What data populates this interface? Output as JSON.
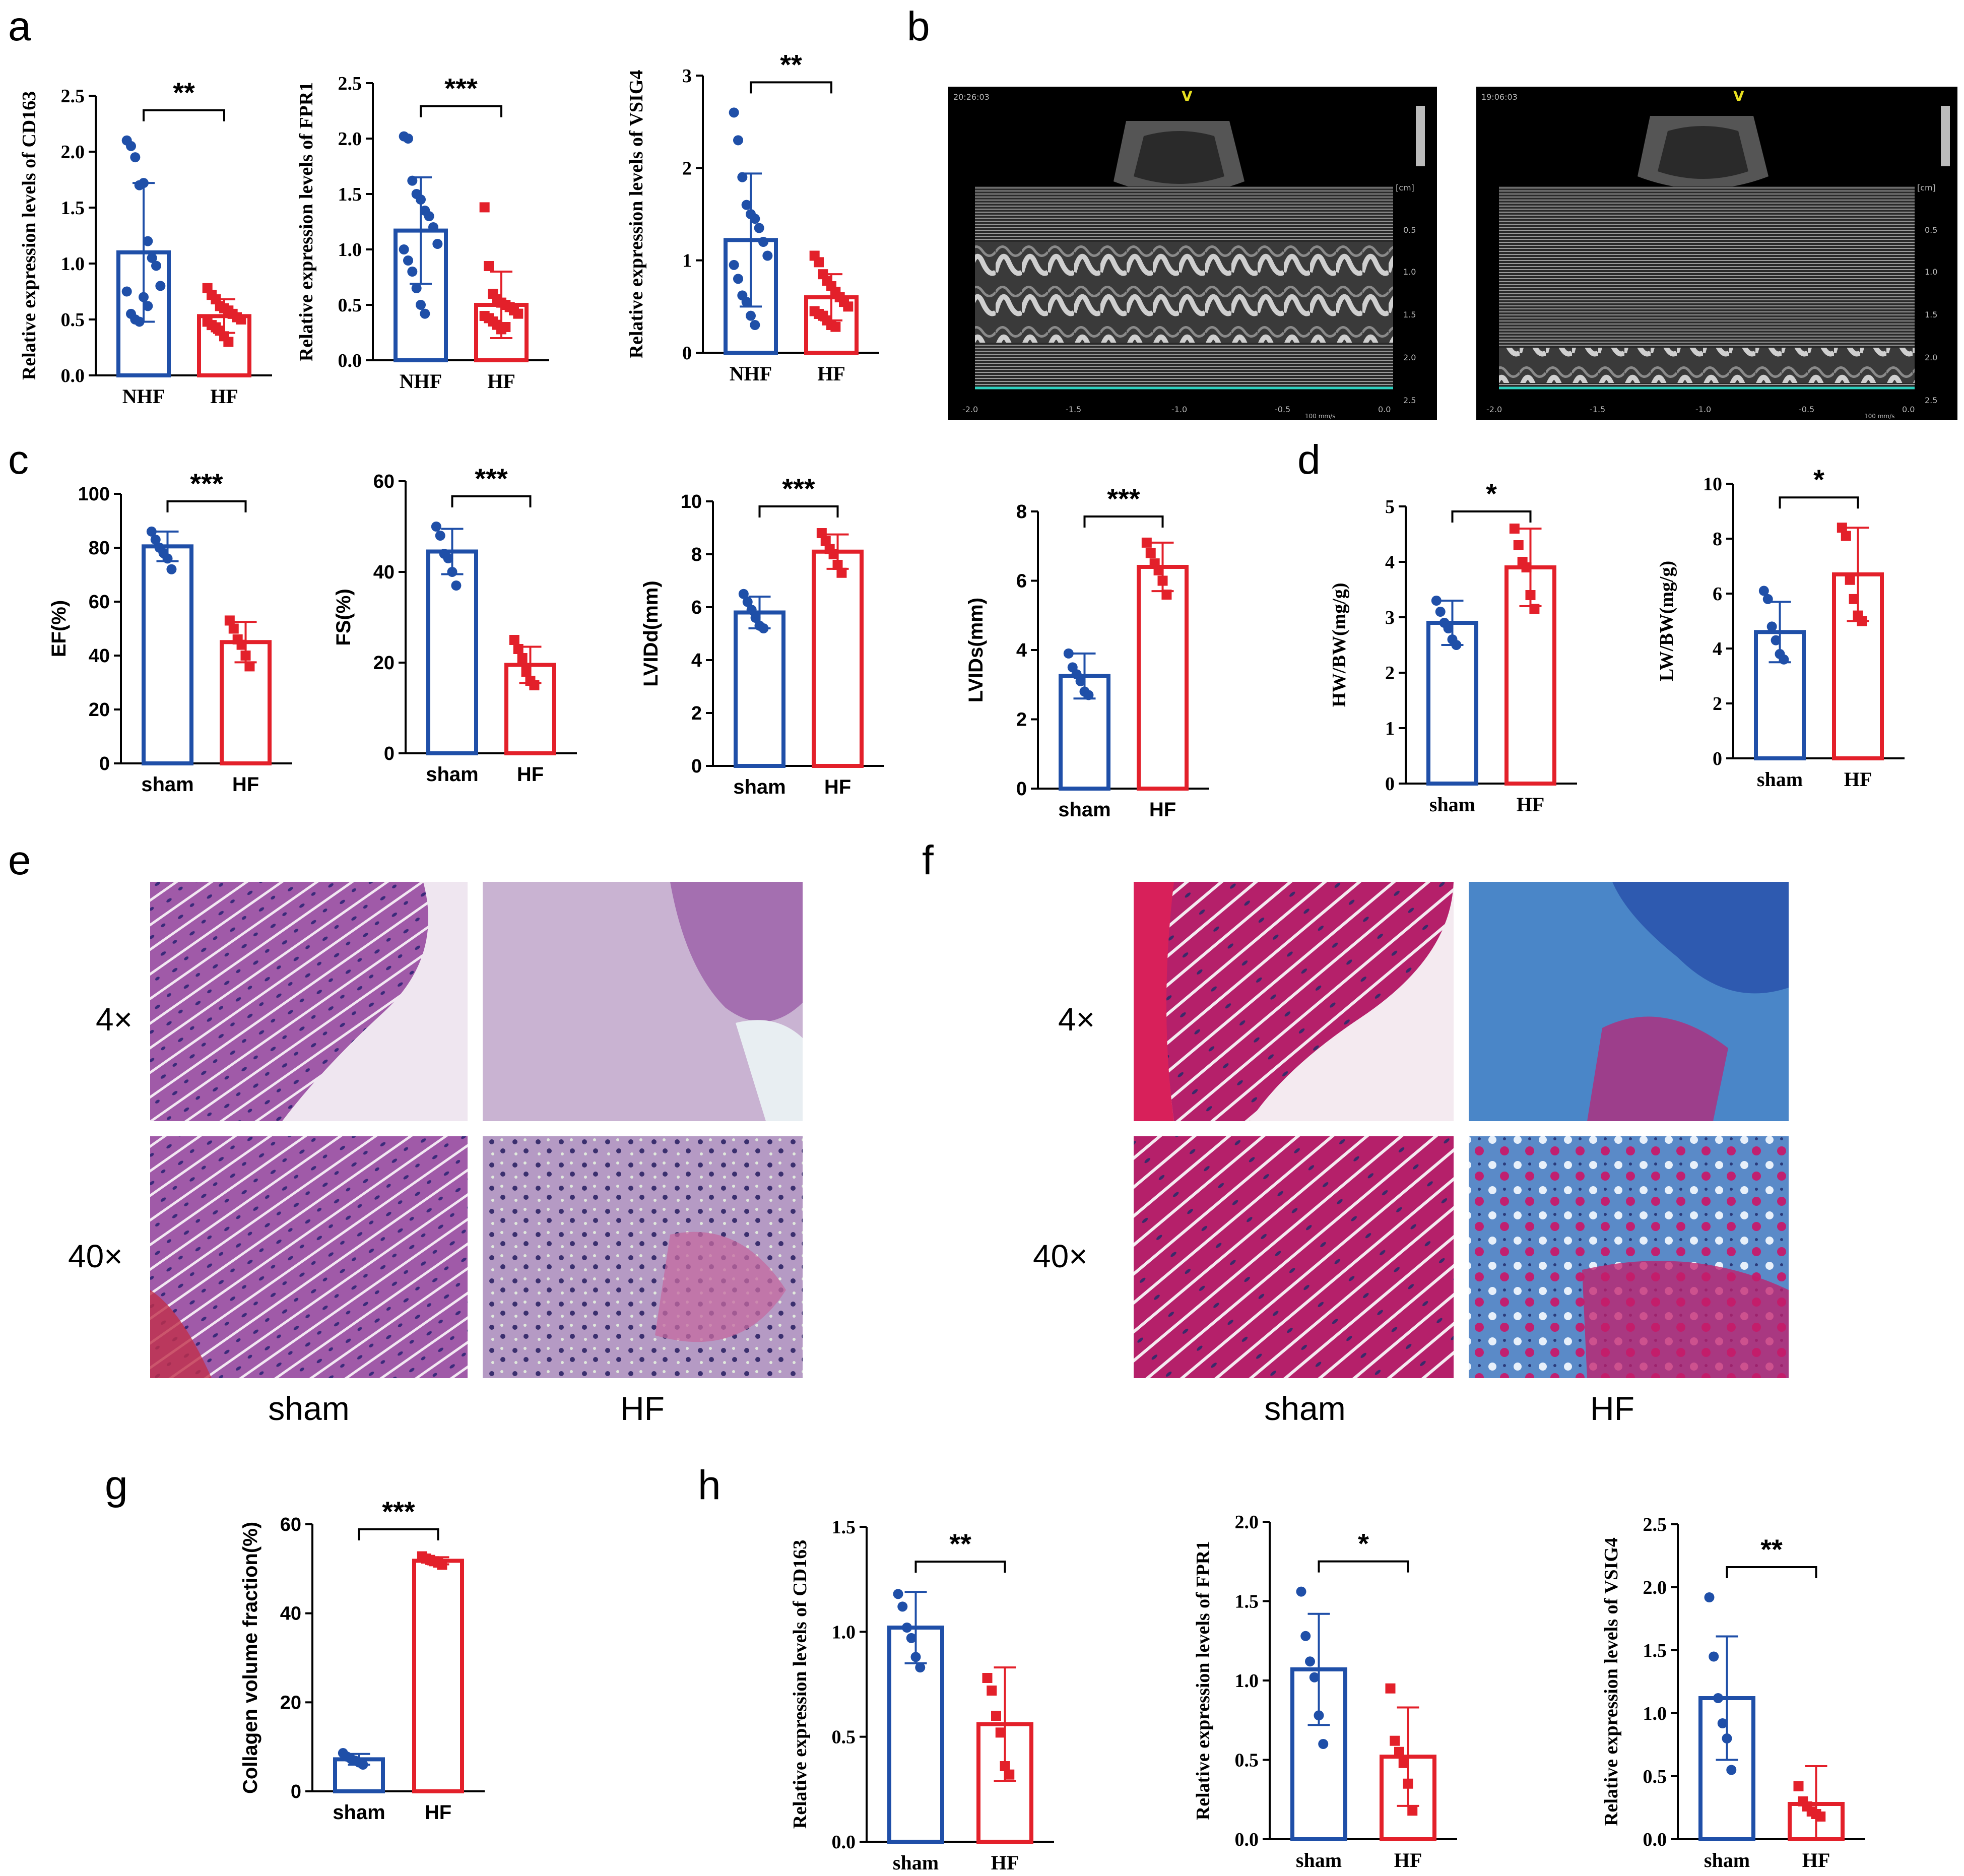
{
  "panel_labels": {
    "a": "a",
    "b": "b",
    "c": "c",
    "d": "d",
    "e": "e",
    "f": "f",
    "g": "g",
    "h": "h"
  },
  "colors": {
    "sham": "#1f4fa8",
    "hf": "#e3202a",
    "axis": "#000000"
  },
  "chart_data": [
    {
      "type": "bar",
      "panel": "a",
      "ylabel": "Relative expression levels of CD163",
      "categories": [
        "NHF",
        "HF"
      ],
      "values": [
        1.1,
        0.53
      ],
      "errors": [
        0.62,
        0.15
      ],
      "ylim": [
        0,
        2.5
      ],
      "yticks": [
        0.0,
        0.5,
        1.0,
        1.5,
        2.0,
        2.5
      ],
      "tick_labels": [
        "0.0",
        "0.5",
        "1.0",
        "1.5",
        "2.0",
        "2.5"
      ],
      "significance": "**",
      "points": [
        [
          2.1,
          2.05,
          1.95,
          1.7,
          1.72,
          1.2,
          1.05,
          0.98,
          0.8,
          0.75,
          0.55,
          0.5,
          0.48,
          0.7,
          0.62
        ],
        [
          0.78,
          0.72,
          0.68,
          0.62,
          0.6,
          0.58,
          0.55,
          0.52,
          0.5,
          0.48,
          0.45,
          0.43,
          0.4,
          0.35,
          0.3
        ]
      ],
      "serif": true
    },
    {
      "type": "bar",
      "panel": "a",
      "ylabel": "Relative expression levels of FPR1",
      "categories": [
        "NHF",
        "HF"
      ],
      "values": [
        1.17,
        0.5
      ],
      "errors": [
        0.48,
        0.3
      ],
      "ylim": [
        0,
        2.5
      ],
      "yticks": [
        0.0,
        0.5,
        1.0,
        1.5,
        2.0,
        2.5
      ],
      "tick_labels": [
        "0.0",
        "0.5",
        "1.0",
        "1.5",
        "2.0",
        "2.5"
      ],
      "significance": "***",
      "points": [
        [
          2.02,
          2.0,
          1.62,
          1.5,
          1.45,
          1.35,
          1.3,
          1.2,
          1.05,
          1.0,
          0.9,
          0.8,
          0.65,
          0.5,
          0.42
        ],
        [
          1.38,
          0.85,
          0.6,
          0.55,
          0.52,
          0.5,
          0.48,
          0.45,
          0.42,
          0.4,
          0.38,
          0.35,
          0.32,
          0.28,
          0.3
        ]
      ],
      "serif": true
    },
    {
      "type": "bar",
      "panel": "a",
      "ylabel": "Relative expression levels of VSIG4",
      "categories": [
        "NHF",
        "HF"
      ],
      "values": [
        1.22,
        0.6
      ],
      "errors": [
        0.72,
        0.25
      ],
      "ylim": [
        0,
        3
      ],
      "yticks": [
        0,
        1,
        2,
        3
      ],
      "tick_labels": [
        "0",
        "1",
        "2",
        "3"
      ],
      "significance": "**",
      "points": [
        [
          2.6,
          2.3,
          1.9,
          1.6,
          1.5,
          1.45,
          1.35,
          1.2,
          1.05,
          0.95,
          0.8,
          0.62,
          0.55,
          0.4,
          0.3
        ],
        [
          1.05,
          0.98,
          0.85,
          0.78,
          0.72,
          0.66,
          0.6,
          0.55,
          0.5,
          0.45,
          0.42,
          0.4,
          0.35,
          0.3,
          0.28
        ]
      ],
      "serif": true
    },
    {
      "type": "bar",
      "panel": "c",
      "ylabel": "EF(%)",
      "categories": [
        "sham",
        "HF"
      ],
      "values": [
        80.5,
        45
      ],
      "errors": [
        5.5,
        7.5
      ],
      "ylim": [
        0,
        100
      ],
      "yticks": [
        0,
        20,
        40,
        60,
        80,
        100
      ],
      "tick_labels": [
        "0",
        "20",
        "40",
        "60",
        "80",
        "100"
      ],
      "significance": "***",
      "points": [
        [
          86,
          83,
          80,
          78,
          76,
          72
        ],
        [
          53,
          50,
          46,
          44,
          40,
          36
        ]
      ],
      "serif": false
    },
    {
      "type": "bar",
      "panel": "c",
      "ylabel": "FS(%)",
      "categories": [
        "sham",
        "HF"
      ],
      "values": [
        44.5,
        19.5
      ],
      "errors": [
        5,
        4
      ],
      "ylim": [
        0,
        60
      ],
      "yticks": [
        0,
        20,
        40,
        60
      ],
      "tick_labels": [
        "0",
        "20",
        "40",
        "60"
      ],
      "significance": "***",
      "points": [
        [
          50,
          48,
          44,
          43,
          40,
          37
        ],
        [
          25,
          23,
          21,
          18,
          16,
          15
        ]
      ],
      "serif": false
    },
    {
      "type": "bar",
      "panel": "c",
      "ylabel": "LVIDd(mm)",
      "categories": [
        "sham",
        "HF"
      ],
      "values": [
        5.8,
        8.1
      ],
      "errors": [
        0.6,
        0.65
      ],
      "ylim": [
        0,
        10
      ],
      "yticks": [
        0,
        2,
        4,
        6,
        8,
        10
      ],
      "tick_labels": [
        "0",
        "2",
        "4",
        "6",
        "8",
        "10"
      ],
      "significance": "***",
      "points": [
        [
          6.5,
          6.2,
          5.9,
          5.6,
          5.3,
          5.2
        ],
        [
          8.8,
          8.5,
          8.2,
          8.0,
          7.6,
          7.3
        ]
      ],
      "serif": false
    },
    {
      "type": "bar",
      "panel": "c",
      "ylabel": "LVIDs(mm)",
      "categories": [
        "sham",
        "HF"
      ],
      "values": [
        3.25,
        6.4
      ],
      "errors": [
        0.65,
        0.7
      ],
      "ylim": [
        0,
        8
      ],
      "yticks": [
        0,
        2,
        4,
        6,
        8
      ],
      "tick_labels": [
        "0",
        "2",
        "4",
        "6",
        "8"
      ],
      "significance": "***",
      "points": [
        [
          3.9,
          3.5,
          3.3,
          3.1,
          2.8,
          2.7
        ],
        [
          7.1,
          6.8,
          6.5,
          6.3,
          6.0,
          5.6
        ]
      ],
      "serif": false
    },
    {
      "type": "bar",
      "panel": "d",
      "ylabel": "HW/BW(mg/g)",
      "categories": [
        "sham",
        "HF"
      ],
      "values": [
        2.9,
        3.9
      ],
      "errors": [
        0.4,
        0.7
      ],
      "ylim": [
        0,
        5
      ],
      "yticks": [
        0,
        1,
        2,
        3,
        4,
        5
      ],
      "tick_labels": [
        "0",
        "1",
        "2",
        "3",
        "4",
        "5"
      ],
      "significance": "*",
      "points": [
        [
          3.3,
          3.1,
          2.9,
          2.8,
          2.6,
          2.5
        ],
        [
          4.6,
          4.3,
          4.0,
          3.9,
          3.4,
          3.15
        ]
      ],
      "serif": true
    },
    {
      "type": "bar",
      "panel": "d",
      "ylabel": "LW/BW(mg/g)",
      "categories": [
        "sham",
        "HF"
      ],
      "values": [
        4.6,
        6.7
      ],
      "errors": [
        1.1,
        1.7
      ],
      "ylim": [
        0,
        10
      ],
      "yticks": [
        0,
        2,
        4,
        6,
        8,
        10
      ],
      "tick_labels": [
        "0",
        "2",
        "4",
        "6",
        "8",
        "10"
      ],
      "significance": "*",
      "points": [
        [
          6.1,
          5.8,
          4.8,
          4.3,
          3.8,
          3.6
        ],
        [
          8.4,
          8.1,
          6.5,
          5.8,
          5.2,
          5.0
        ]
      ],
      "serif": true
    },
    {
      "type": "bar",
      "panel": "g",
      "ylabel": "Collagen volume fraction(%)",
      "categories": [
        "sham",
        "HF"
      ],
      "values": [
        7.2,
        51.8
      ],
      "errors": [
        1.2,
        0.8
      ],
      "ylim": [
        0,
        60
      ],
      "yticks": [
        0,
        20,
        40,
        60
      ],
      "tick_labels": [
        "0",
        "20",
        "40",
        "60"
      ],
      "significance": "***",
      "points": [
        [
          8.6,
          7.8,
          7.3,
          6.9,
          6.5,
          6.0
        ],
        [
          52.8,
          52.3,
          52.0,
          51.7,
          51.4,
          50.9
        ]
      ],
      "serif": false
    },
    {
      "type": "bar",
      "panel": "h",
      "ylabel": "Relative expression levels of CD163",
      "categories": [
        "sham",
        "HF"
      ],
      "values": [
        1.02,
        0.56
      ],
      "errors": [
        0.17,
        0.27
      ],
      "ylim": [
        0,
        1.5
      ],
      "yticks": [
        0.0,
        0.5,
        1.0,
        1.5
      ],
      "tick_labels": [
        "0.0",
        "0.5",
        "1.0",
        "1.5"
      ],
      "significance": "**",
      "points": [
        [
          1.18,
          1.12,
          1.02,
          0.97,
          0.88,
          0.83
        ],
        [
          0.78,
          0.72,
          0.6,
          0.52,
          0.36,
          0.32
        ]
      ],
      "serif": true
    },
    {
      "type": "bar",
      "panel": "h",
      "ylabel": "Relative expression levels of FPR1",
      "categories": [
        "sham",
        "HF"
      ],
      "values": [
        1.07,
        0.52
      ],
      "errors": [
        0.35,
        0.31
      ],
      "ylim": [
        0,
        2.0
      ],
      "yticks": [
        0.0,
        0.5,
        1.0,
        1.5,
        2.0
      ],
      "tick_labels": [
        "0.0",
        "0.5",
        "1.0",
        "1.5",
        "2.0"
      ],
      "significance": "*",
      "points": [
        [
          1.56,
          1.28,
          1.12,
          1.02,
          0.78,
          0.6
        ],
        [
          0.95,
          0.62,
          0.55,
          0.48,
          0.35,
          0.18
        ]
      ],
      "serif": true
    },
    {
      "type": "bar",
      "panel": "h",
      "ylabel": "Relative expression levels of VSIG4",
      "categories": [
        "sham",
        "HF"
      ],
      "values": [
        1.12,
        0.28
      ],
      "errors": [
        0.49,
        0.3
      ],
      "ylim": [
        0,
        2.5
      ],
      "yticks": [
        0.0,
        0.5,
        1.0,
        1.5,
        2.0,
        2.5
      ],
      "tick_labels": [
        "0.0",
        "0.5",
        "1.0",
        "1.5",
        "2.0",
        "2.5"
      ],
      "significance": "**",
      "points": [
        [
          1.92,
          1.45,
          1.12,
          0.92,
          0.8,
          0.55
        ],
        [
          0.42,
          0.3,
          0.26,
          0.22,
          0.2,
          0.18
        ]
      ],
      "serif": true
    }
  ],
  "histology": {
    "magnifications": [
      "4×",
      "40×"
    ],
    "groups": [
      "sham",
      "HF"
    ]
  },
  "echo_axis": {
    "time_ticks": [
      "-2.0",
      "-1.5",
      "-1.0",
      "-0.5",
      "0.0"
    ],
    "depth_ticks": [
      "0.5",
      "1.0",
      "1.5",
      "2.0",
      "2.5"
    ],
    "unit": "[cm]",
    "speed": "100 mm/s",
    "clock_left": "20:26:03",
    "clock_right": "19:06:03",
    "probe_mark": "V"
  }
}
